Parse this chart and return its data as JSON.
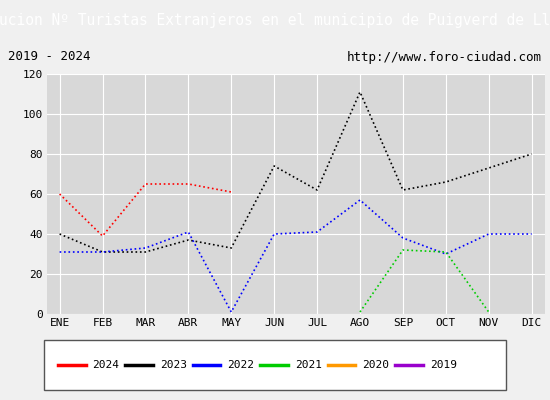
{
  "title": "Evolucion Nº Turistas Extranjeros en el municipio de Puigverd de Lleida",
  "subtitle_left": "2019 - 2024",
  "subtitle_right": "http://www.foro-ciudad.com",
  "months": [
    "ENE",
    "FEB",
    "MAR",
    "ABR",
    "MAY",
    "JUN",
    "JUL",
    "AGO",
    "SEP",
    "OCT",
    "NOV",
    "DIC"
  ],
  "series_data": {
    "2024": [
      60,
      39,
      65,
      65,
      61,
      null,
      null,
      null,
      null,
      null,
      null,
      null
    ],
    "2023": [
      40,
      31,
      31,
      37,
      33,
      74,
      62,
      111,
      62,
      66,
      73,
      80
    ],
    "2022": [
      31,
      31,
      33,
      41,
      1,
      40,
      41,
      57,
      38,
      30,
      40,
      40
    ],
    "2021": [
      null,
      null,
      null,
      null,
      null,
      null,
      null,
      1,
      32,
      31,
      1,
      null
    ],
    "2020": [
      null,
      null,
      null,
      null,
      null,
      null,
      null,
      null,
      null,
      null,
      null,
      null
    ],
    "2019": [
      null,
      null,
      null,
      null,
      null,
      null,
      null,
      null,
      null,
      null,
      null,
      null
    ]
  },
  "colors": {
    "2024": "#ff0000",
    "2023": "#000000",
    "2022": "#0000ff",
    "2021": "#00cc00",
    "2020": "#ff9900",
    "2019": "#9900cc"
  },
  "legend_order": [
    "2024",
    "2023",
    "2022",
    "2021",
    "2020",
    "2019"
  ],
  "ylim": [
    0,
    120
  ],
  "yticks": [
    0,
    20,
    40,
    60,
    80,
    100,
    120
  ],
  "plot_bg": "#d8d8d8",
  "title_bg": "#4477cc",
  "title_color": "#ffffff",
  "subtitle_bg": "#f0f0f0",
  "outer_bg": "#f0f0f0",
  "title_fontsize": 10.5,
  "subtitle_fontsize": 9,
  "tick_fontsize": 8,
  "legend_fontsize": 8
}
